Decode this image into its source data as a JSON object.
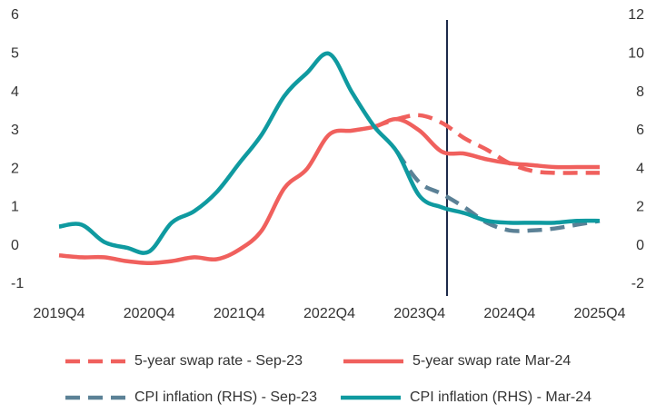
{
  "chart_data": {
    "type": "line",
    "categories": [
      "2019Q4",
      null,
      null,
      null,
      "2020Q4",
      null,
      null,
      null,
      "2021Q4",
      null,
      null,
      null,
      "2022Q4",
      null,
      null,
      null,
      "2023Q4",
      null,
      null,
      null,
      "2024Q4",
      null,
      null,
      null,
      "2025Q4"
    ],
    "ylim": [
      -1,
      6
    ],
    "yticks": [
      -1,
      0,
      1,
      2,
      3,
      4,
      5,
      6
    ],
    "y2lim": [
      -2,
      12
    ],
    "y2ticks": [
      -2,
      0,
      2,
      4,
      6,
      8,
      10,
      12
    ],
    "series": [
      {
        "name": "5-year swap rate - Sep-23",
        "color": "#f0605d",
        "dashed": true,
        "values": [
          null,
          null,
          null,
          null,
          null,
          null,
          null,
          null,
          null,
          null,
          null,
          null,
          null,
          null,
          3.1,
          3.3,
          3.4,
          3.2,
          2.8,
          2.5,
          2.15,
          1.95,
          1.9,
          1.9,
          1.9
        ]
      },
      {
        "name": "5-year swap rate Mar-24",
        "color": "#f0605d",
        "dashed": false,
        "values": [
          -0.25,
          -0.3,
          -0.3,
          -0.4,
          -0.45,
          -0.4,
          -0.3,
          -0.35,
          -0.1,
          0.4,
          1.5,
          2.0,
          2.9,
          3.0,
          3.1,
          3.3,
          3.0,
          2.45,
          2.4,
          2.25,
          2.15,
          2.1,
          2.05,
          2.05,
          2.05
        ]
      },
      {
        "name": "CPI inflation (RHS) - Sep-23",
        "color": "#5b8196",
        "dashed": true,
        "axis": "y2",
        "values": [
          null,
          null,
          null,
          null,
          null,
          null,
          null,
          null,
          null,
          null,
          null,
          null,
          null,
          null,
          null,
          4.9,
          3.3,
          2.7,
          2.0,
          1.2,
          0.8,
          0.8,
          0.9,
          1.1,
          1.3
        ]
      },
      {
        "name": "CPI inflation (RHS) - Mar-24",
        "color": "#0f9aa0",
        "dashed": false,
        "axis": "y2",
        "values": [
          1.0,
          1.1,
          0.2,
          -0.1,
          -0.3,
          1.2,
          1.8,
          2.8,
          4.3,
          5.8,
          7.8,
          9.0,
          10.0,
          8.0,
          6.2,
          4.9,
          2.6,
          2.0,
          1.7,
          1.3,
          1.2,
          1.2,
          1.2,
          1.3,
          1.3
        ]
      }
    ]
  }
}
